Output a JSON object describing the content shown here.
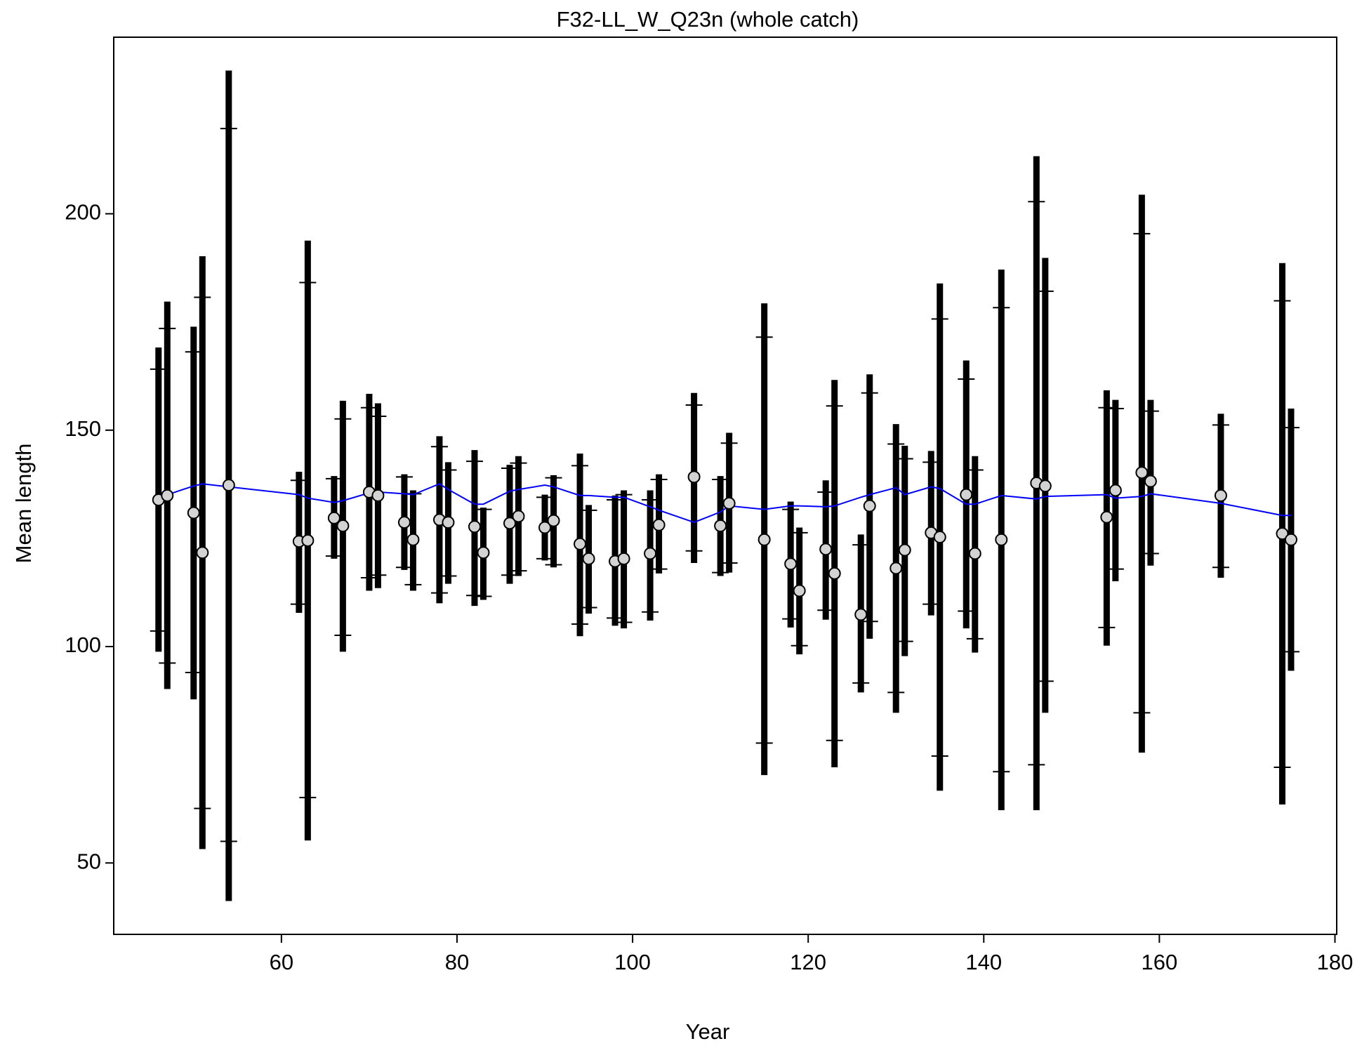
{
  "chart_data": {
    "type": "errorbar",
    "title": "F32-LL_W_Q23n (whole catch)",
    "x_label": "Year",
    "y_label": "Mean length",
    "xlim": [
      40.9,
      180.2
    ],
    "ylim": [
      33.5,
      240.8
    ],
    "xticks": [
      60,
      80,
      100,
      120,
      140,
      160,
      180
    ],
    "yticks": [
      50,
      100,
      150,
      200
    ],
    "bar_color": "#000000",
    "point_color": "#d3d3d3",
    "line_color": "#0000ff",
    "x": [
      46,
      47,
      50,
      51,
      54,
      62,
      63,
      66,
      67,
      70,
      71,
      74,
      75,
      78,
      79,
      82,
      83,
      86,
      87,
      90,
      91,
      94,
      95,
      98,
      99,
      102,
      103,
      107,
      110,
      111,
      115,
      118,
      119,
      122,
      123,
      126,
      127,
      130,
      131,
      134,
      135,
      138,
      139,
      142,
      146,
      147,
      154,
      155,
      158,
      159,
      167,
      174,
      175
    ],
    "values": [
      133.9,
      134.9,
      130.9,
      121.7,
      137.3,
      124.3,
      124.5,
      129.7,
      127.9,
      135.7,
      134.9,
      128.7,
      124.7,
      129.3,
      128.7,
      127.7,
      121.7,
      128.5,
      130.1,
      127.5,
      129.1,
      123.7,
      120.3,
      119.7,
      120.3,
      121.5,
      128.1,
      139.2,
      127.9,
      133.1,
      124.7,
      119.1,
      112.9,
      122.5,
      116.9,
      107.4,
      132.5,
      118.1,
      122.3,
      126.3,
      125.3,
      135.1,
      121.5,
      124.7,
      137.8,
      137.1,
      129.9,
      136.1,
      140.2,
      138.2,
      134.9,
      126.1,
      124.7
    ],
    "expected": [
      134.3,
      135.1,
      137.1,
      137.6,
      136.9,
      135.1,
      134.3,
      133.3,
      133.7,
      135.5,
      135.7,
      135.3,
      135.1,
      137.6,
      136.3,
      132.9,
      132.9,
      135.9,
      136.3,
      137.3,
      136.9,
      134.9,
      134.9,
      134.5,
      134.5,
      132.3,
      131.5,
      128.7,
      131.1,
      132.5,
      131.7,
      132.5,
      132.5,
      132.3,
      132.5,
      134.5,
      135.1,
      136.7,
      135.1,
      136.9,
      136.5,
      132.9,
      132.9,
      134.9,
      134.1,
      134.7,
      135.1,
      134.3,
      134.7,
      135.3,
      133.1,
      130.3,
      130.3
    ],
    "upper": [
      169.1,
      179.7,
      173.9,
      190.2,
      233.1,
      140.4,
      193.8,
      139.4,
      156.8,
      158.4,
      156.2,
      139.8,
      136.1,
      148.6,
      142.6,
      145.4,
      132.1,
      142.0,
      144.0,
      135.1,
      139.6,
      144.6,
      132.7,
      134.9,
      136.1,
      136.1,
      139.8,
      158.6,
      139.4,
      149.4,
      179.3,
      133.5,
      127.5,
      138.4,
      161.6,
      125.9,
      162.9,
      151.4,
      146.4,
      145.2,
      183.9,
      166.1,
      144.0,
      187.1,
      213.3,
      189.8,
      159.2,
      157.0,
      204.4,
      157.0,
      153.8,
      188.6,
      155.0
    ],
    "lower": [
      98.8,
      90.2,
      87.8,
      53.2,
      41.2,
      107.8,
      55.2,
      120.3,
      98.8,
      112.9,
      113.5,
      117.7,
      112.9,
      110.0,
      114.5,
      109.4,
      110.8,
      114.5,
      116.3,
      119.9,
      118.3,
      102.4,
      107.6,
      104.8,
      104.2,
      106.0,
      116.9,
      119.3,
      116.3,
      117.1,
      70.3,
      104.4,
      98.2,
      106.2,
      72.1,
      89.4,
      101.8,
      84.7,
      97.8,
      107.2,
      66.7,
      104.2,
      98.6,
      62.2,
      62.2,
      84.7,
      100.2,
      115.1,
      75.5,
      118.7,
      115.9,
      63.5,
      94.4
    ],
    "inner_upper": [
      164.1,
      173.5,
      168.1,
      180.7,
      219.7,
      138.4,
      184.1,
      138.8,
      152.6,
      155.2,
      153.2,
      139.2,
      135.3,
      146.2,
      140.8,
      142.8,
      131.7,
      141.2,
      142.4,
      134.5,
      139.0,
      141.8,
      131.5,
      133.9,
      135.1,
      133.9,
      138.6,
      155.8,
      138.6,
      147.0,
      171.5,
      131.7,
      126.3,
      135.7,
      155.6,
      123.5,
      158.6,
      146.8,
      143.4,
      142.6,
      175.7,
      161.8,
      140.8,
      178.3,
      202.8,
      182.1,
      155.2,
      155.0,
      195.4,
      154.4,
      151.2,
      179.9,
      150.6
    ],
    "inner_lower": [
      103.6,
      96.2,
      94.0,
      62.6,
      55.0,
      109.8,
      65.1,
      120.9,
      102.6,
      115.9,
      116.5,
      118.3,
      114.3,
      112.4,
      116.3,
      111.8,
      111.6,
      116.5,
      117.5,
      120.3,
      118.9,
      105.2,
      109.0,
      106.6,
      105.6,
      108.0,
      117.9,
      122.1,
      117.1,
      119.3,
      77.7,
      106.4,
      100.2,
      108.4,
      78.3,
      91.6,
      105.8,
      89.4,
      101.2,
      109.8,
      74.7,
      108.2,
      101.8,
      71.1,
      72.7,
      92.0,
      104.4,
      117.9,
      84.7,
      121.5,
      118.3,
      72.1,
      98.8
    ]
  }
}
